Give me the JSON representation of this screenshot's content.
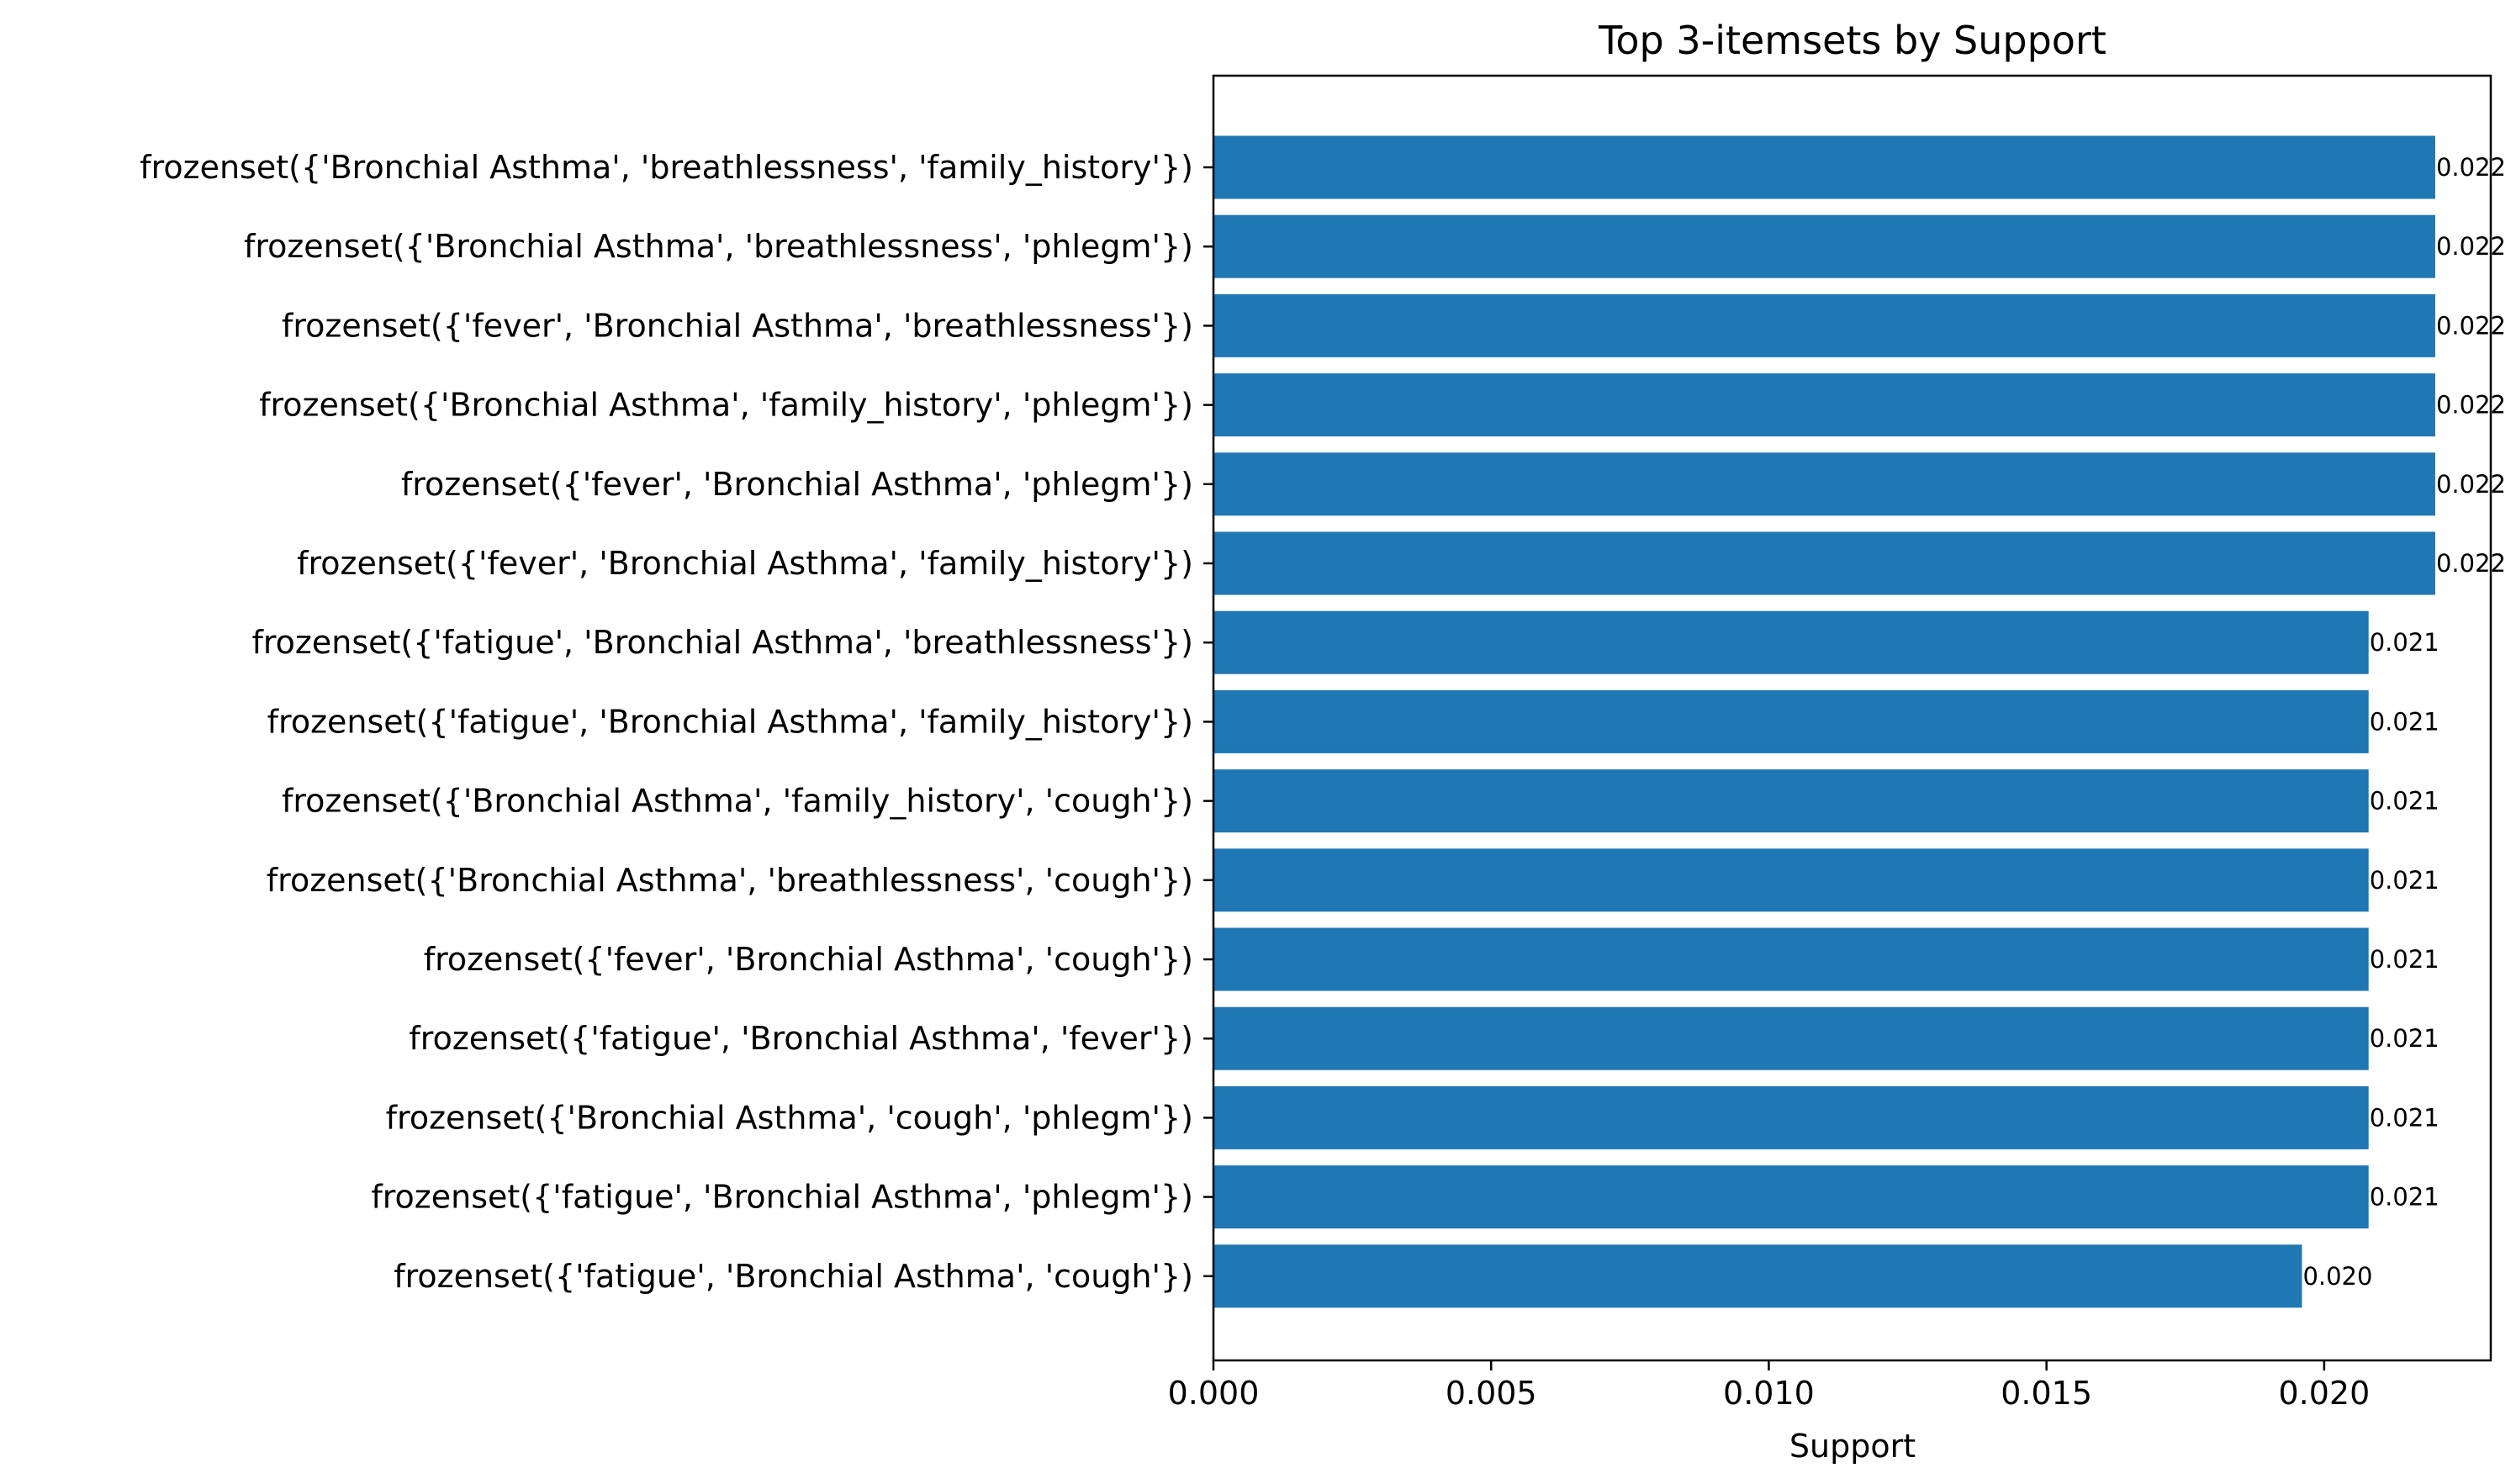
{
  "colors": {
    "bar": "#1f77b4",
    "axis": "#000000",
    "background": "#ffffff"
  },
  "chart_data": {
    "type": "bar",
    "orientation": "horizontal",
    "title": "Top 3-itemsets by Support",
    "xlabel": "Support",
    "ylabel": "",
    "xlim": [
      0,
      0.023
    ],
    "xticks": [
      0.0,
      0.005,
      0.01,
      0.015,
      0.02
    ],
    "xtick_labels": [
      "0.000",
      "0.005",
      "0.010",
      "0.015",
      "0.020"
    ],
    "grid": false,
    "categories": [
      "frozenset({'Bronchial Asthma', 'breathlessness', 'family_history'})",
      "frozenset({'Bronchial Asthma', 'breathlessness', 'phlegm'})",
      "frozenset({'fever', 'Bronchial Asthma', 'breathlessness'})",
      "frozenset({'Bronchial Asthma', 'family_history', 'phlegm'})",
      "frozenset({'fever', 'Bronchial Asthma', 'phlegm'})",
      "frozenset({'fever', 'Bronchial Asthma', 'family_history'})",
      "frozenset({'fatigue', 'Bronchial Asthma', 'breathlessness'})",
      "frozenset({'fatigue', 'Bronchial Asthma', 'family_history'})",
      "frozenset({'Bronchial Asthma', 'family_history', 'cough'})",
      "frozenset({'Bronchial Asthma', 'breathlessness', 'cough'})",
      "frozenset({'fever', 'Bronchial Asthma', 'cough'})",
      "frozenset({'fatigue', 'Bronchial Asthma', 'fever'})",
      "frozenset({'Bronchial Asthma', 'cough', 'phlegm'})",
      "frozenset({'fatigue', 'Bronchial Asthma', 'phlegm'})",
      "frozenset({'fatigue', 'Bronchial Asthma', 'cough'})"
    ],
    "values": [
      0.022,
      0.022,
      0.022,
      0.022,
      0.022,
      0.022,
      0.0208,
      0.0208,
      0.0208,
      0.0208,
      0.0208,
      0.0208,
      0.0208,
      0.0208,
      0.0196
    ],
    "value_labels": [
      "0.022",
      "0.022",
      "0.022",
      "0.022",
      "0.022",
      "0.022",
      "0.021",
      "0.021",
      "0.021",
      "0.021",
      "0.021",
      "0.021",
      "0.021",
      "0.021",
      "0.020"
    ]
  }
}
